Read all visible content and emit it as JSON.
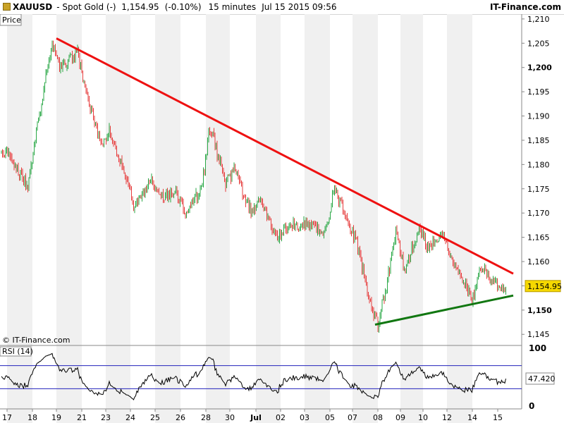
{
  "header": {
    "symbol": "XAUUSD",
    "name": "- Spot Gold (-)",
    "last": "1,154.95",
    "change": "(-0.10%)",
    "interval": "15 minutes",
    "datetime": "Jul 15 2015 09:56",
    "brand": "IT-Finance.com"
  },
  "price_panel": {
    "label": "Price",
    "watermark": "© IT-Finance.com",
    "last_tag": "1,154.95"
  },
  "rsi_panel": {
    "label": "RSI (14)",
    "value_tag": "47.420"
  },
  "colors": {
    "up": "#28a745",
    "down": "#e63c3c",
    "resistance": "#ee1111",
    "support": "#117711",
    "rsi_band": "#2222bb",
    "tag_bg": "#f5d800"
  },
  "chart_data": {
    "type": "candlestick",
    "title": "XAUUSD - Spot Gold (-) 15 minutes",
    "y_axis": {
      "ticks": [
        "1,210",
        "1,205",
        "1,200",
        "1,195",
        "1,190",
        "1,185",
        "1,180",
        "1,175",
        "1,170",
        "1,165",
        "1,160",
        "1,155",
        "1,150",
        "1,145"
      ],
      "bold_ticks": [
        "1,200",
        "1,150"
      ],
      "range": [
        1143,
        1211
      ]
    },
    "x_axis": {
      "ticks": [
        "17",
        "18",
        "19",
        "21",
        "23",
        "24",
        "25",
        "26",
        "28",
        "30",
        "Jul",
        "02",
        "03",
        "05",
        "07",
        "08",
        "09",
        "10",
        "12",
        "14",
        "15"
      ],
      "bold_ticks": [
        "Jul"
      ]
    },
    "price_path": [
      {
        "x": "17",
        "close": 1182.5
      },
      {
        "x": "18",
        "close": 1175.5
      },
      {
        "x": "18",
        "close": 1187
      },
      {
        "x": "19",
        "close": 1205.5
      },
      {
        "x": "19",
        "close": 1200
      },
      {
        "x": "21",
        "close": 1203
      },
      {
        "x": "21",
        "close": 1195
      },
      {
        "x": "23",
        "close": 1184
      },
      {
        "x": "23",
        "close": 1187
      },
      {
        "x": "24",
        "close": 1177
      },
      {
        "x": "24",
        "close": 1171
      },
      {
        "x": "25",
        "close": 1176.5
      },
      {
        "x": "25",
        "close": 1173.5
      },
      {
        "x": "26",
        "close": 1174
      },
      {
        "x": "26",
        "close": 1170
      },
      {
        "x": "28",
        "close": 1175
      },
      {
        "x": "28",
        "close": 1188
      },
      {
        "x": "30",
        "close": 1176
      },
      {
        "x": "30",
        "close": 1179
      },
      {
        "x": "Jul",
        "close": 1170
      },
      {
        "x": "Jul",
        "close": 1173
      },
      {
        "x": "02",
        "close": 1165
      },
      {
        "x": "02",
        "close": 1167
      },
      {
        "x": "03",
        "close": 1168
      },
      {
        "x": "05",
        "close": 1166
      },
      {
        "x": "05",
        "close": 1175
      },
      {
        "x": "07",
        "close": 1168
      },
      {
        "x": "07",
        "close": 1164
      },
      {
        "x": "08",
        "close": 1152
      },
      {
        "x": "08",
        "close": 1147
      },
      {
        "x": "08",
        "close": 1155
      },
      {
        "x": "09",
        "close": 1166
      },
      {
        "x": "09",
        "close": 1158
      },
      {
        "x": "10",
        "close": 1167
      },
      {
        "x": "10",
        "close": 1163
      },
      {
        "x": "12",
        "close": 1166
      },
      {
        "x": "12",
        "close": 1160
      },
      {
        "x": "14",
        "close": 1156
      },
      {
        "x": "14",
        "close": 1152
      },
      {
        "x": "14",
        "close": 1159
      },
      {
        "x": "15",
        "close": 1155.5
      },
      {
        "x": "15",
        "close": 1154.95
      }
    ],
    "trendlines": [
      {
        "name": "resistance",
        "from": {
          "x": "19",
          "y": 1206
        },
        "to": {
          "x": "15",
          "y": 1157.5
        }
      },
      {
        "name": "support",
        "from": {
          "x": "08",
          "y": 1147
        },
        "to": {
          "x": "15",
          "y": 1153
        }
      }
    ],
    "last_price": 1154.95,
    "rsi": {
      "period": 14,
      "levels": [
        30,
        70
      ],
      "last": 47.42,
      "axis_ticks": [
        "100",
        "0"
      ]
    }
  }
}
